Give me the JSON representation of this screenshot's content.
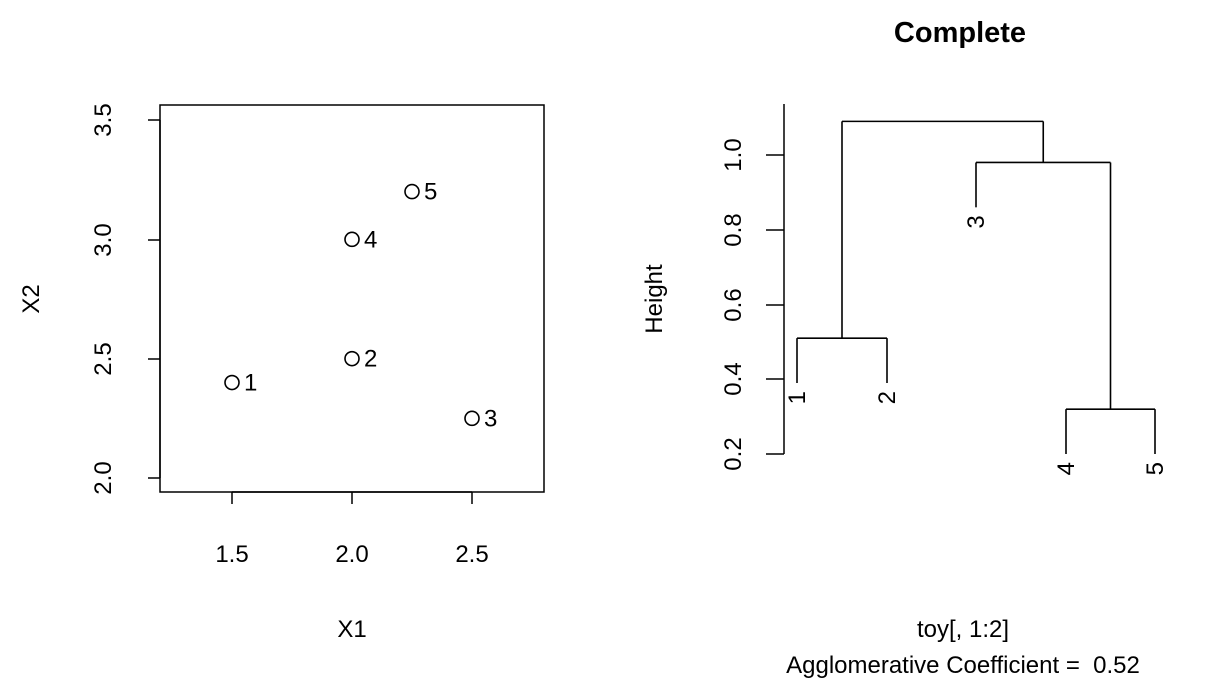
{
  "chart_data": [
    {
      "type": "scatter",
      "title": "",
      "xlabel": "X1",
      "ylabel": "X2",
      "xlim": [
        1.2,
        2.8
      ],
      "ylim": [
        1.95,
        3.55
      ],
      "xticks": [
        "1.5",
        "2.0",
        "2.5"
      ],
      "yticks": [
        "2.0",
        "2.5",
        "3.0",
        "3.5"
      ],
      "points": [
        {
          "label": "1",
          "x": 1.5,
          "y": 2.4
        },
        {
          "label": "2",
          "x": 2.0,
          "y": 2.5
        },
        {
          "label": "3",
          "x": 2.5,
          "y": 2.25
        },
        {
          "label": "4",
          "x": 2.0,
          "y": 3.0
        },
        {
          "label": "5",
          "x": 2.25,
          "y": 3.2
        }
      ]
    },
    {
      "type": "dendrogram",
      "title": "Complete",
      "ylabel": "Height",
      "xlabel": "toy[, 1:2]",
      "subtitle": "Agglomerative Coefficient =  0.52",
      "yticks": [
        "0.2",
        "0.4",
        "0.6",
        "0.8",
        "1.0"
      ],
      "leaf_order": [
        "1",
        "2",
        "3",
        "4",
        "5"
      ],
      "merges": [
        {
          "left": "4",
          "right": "5",
          "height": 0.32
        },
        {
          "left": "1",
          "right": "2",
          "height": 0.51
        },
        {
          "left": "3",
          "right": "4,5",
          "height": 0.98
        },
        {
          "left": "1,2",
          "right": "3,4,5",
          "height": 1.09
        }
      ]
    }
  ]
}
